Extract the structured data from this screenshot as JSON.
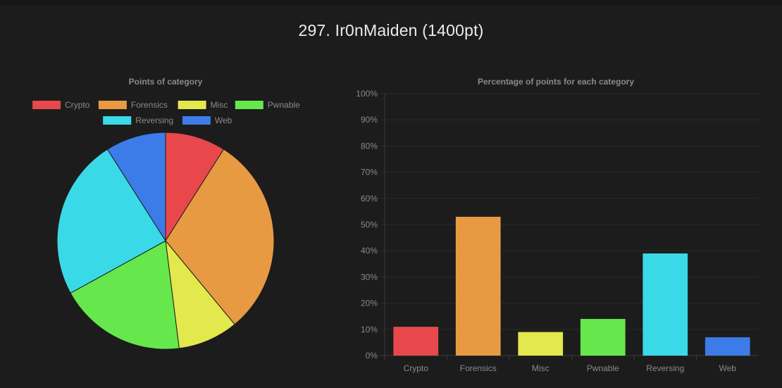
{
  "page": {
    "title": "297. Ir0nMaiden (1400pt)"
  },
  "colors": {
    "background": "#1c1c1c",
    "Crypto": "#e8484b",
    "Forensics": "#e89a42",
    "Misc": "#e3e84d",
    "Pwnable": "#66e84c",
    "Reversing": "#3ad9e8",
    "Web": "#3d7be8"
  },
  "chart_data": [
    {
      "type": "pie",
      "title": "Points of category",
      "legend": [
        "Crypto",
        "Forensics",
        "Misc",
        "Pwnable",
        "Reversing",
        "Web"
      ],
      "legend_placement": "top",
      "series": [
        {
          "values": [
            9,
            30,
            9,
            19,
            24,
            9
          ]
        }
      ]
    },
    {
      "type": "bar",
      "title": "Percentage of points for each category",
      "categories": [
        "Crypto",
        "Forensics",
        "Misc",
        "Pwnable",
        "Reversing",
        "Web"
      ],
      "values": [
        11,
        53,
        9,
        14,
        39,
        7
      ],
      "y_ticks": [
        "0%",
        "10%",
        "20%",
        "30%",
        "40%",
        "50%",
        "60%",
        "70%",
        "80%",
        "90%",
        "100%"
      ],
      "ylim": [
        0,
        100
      ],
      "grid": true,
      "xlabel": "",
      "ylabel": ""
    }
  ]
}
